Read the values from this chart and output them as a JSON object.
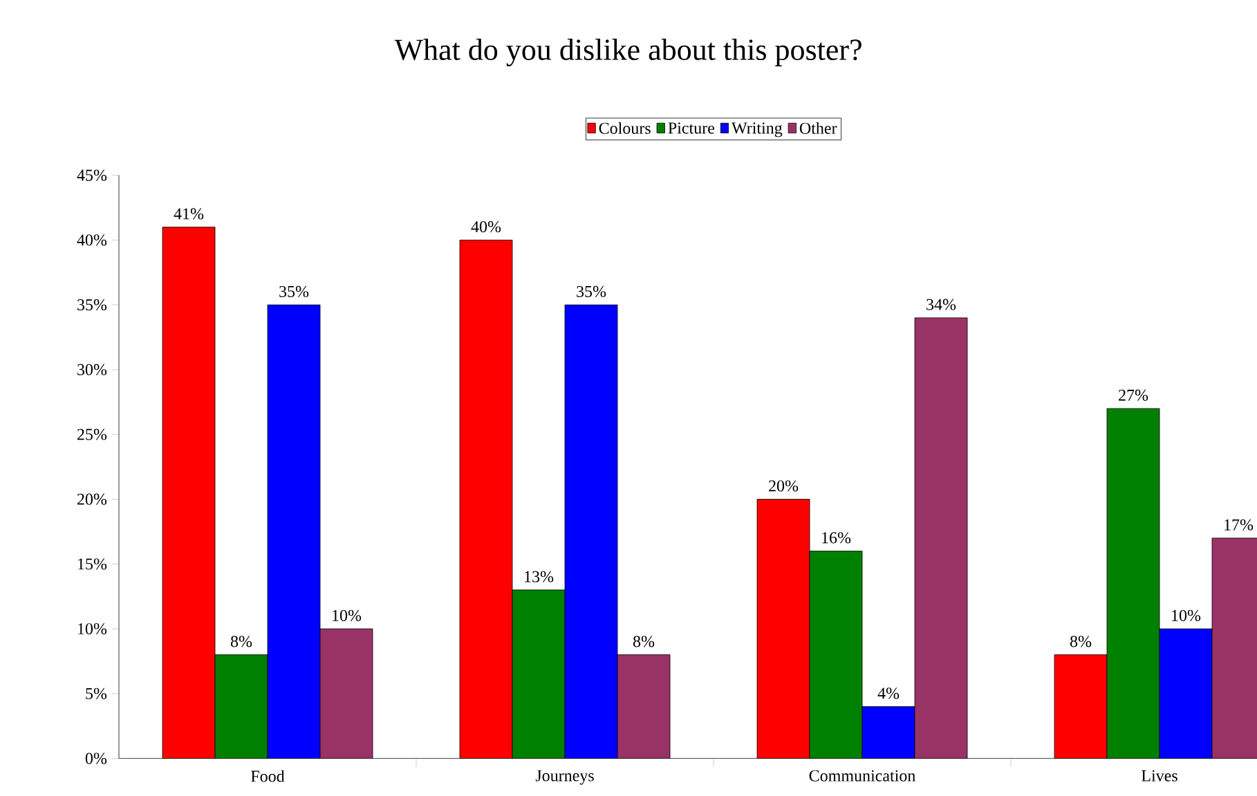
{
  "chart_data": {
    "type": "bar",
    "title": "What do you dislike about this poster?",
    "categories": [
      "Food",
      "Journeys",
      "Communication",
      "Lives"
    ],
    "series": [
      {
        "name": "Colours",
        "color": "#ff0000",
        "values": [
          41,
          40,
          20,
          8
        ],
        "value_labels": [
          "41%",
          "40%",
          "20%",
          "8%"
        ]
      },
      {
        "name": "Picture",
        "color": "#008000",
        "values": [
          8,
          13,
          16,
          27
        ],
        "value_labels": [
          "8%",
          "13%",
          "16%",
          "27%"
        ]
      },
      {
        "name": "Writing",
        "color": "#0000ff",
        "values": [
          35,
          35,
          4,
          10
        ],
        "value_labels": [
          "35%",
          "35%",
          "4%",
          "10%"
        ]
      },
      {
        "name": "Other",
        "color": "#993366",
        "values": [
          10,
          8,
          34,
          17
        ],
        "value_labels": [
          "10%",
          "8%",
          "34%",
          "17%"
        ]
      }
    ],
    "ylim": [
      0,
      45
    ],
    "yticks": [
      {
        "value": 0,
        "label": "0%"
      },
      {
        "value": 5,
        "label": "5%"
      },
      {
        "value": 10,
        "label": "10%"
      },
      {
        "value": 15,
        "label": "15%"
      },
      {
        "value": 20,
        "label": "20%"
      },
      {
        "value": 25,
        "label": "25%"
      },
      {
        "value": 30,
        "label": "30%"
      },
      {
        "value": 35,
        "label": "35%"
      },
      {
        "value": 40,
        "label": "40%"
      },
      {
        "value": 45,
        "label": "45%"
      }
    ],
    "legend": "top"
  }
}
